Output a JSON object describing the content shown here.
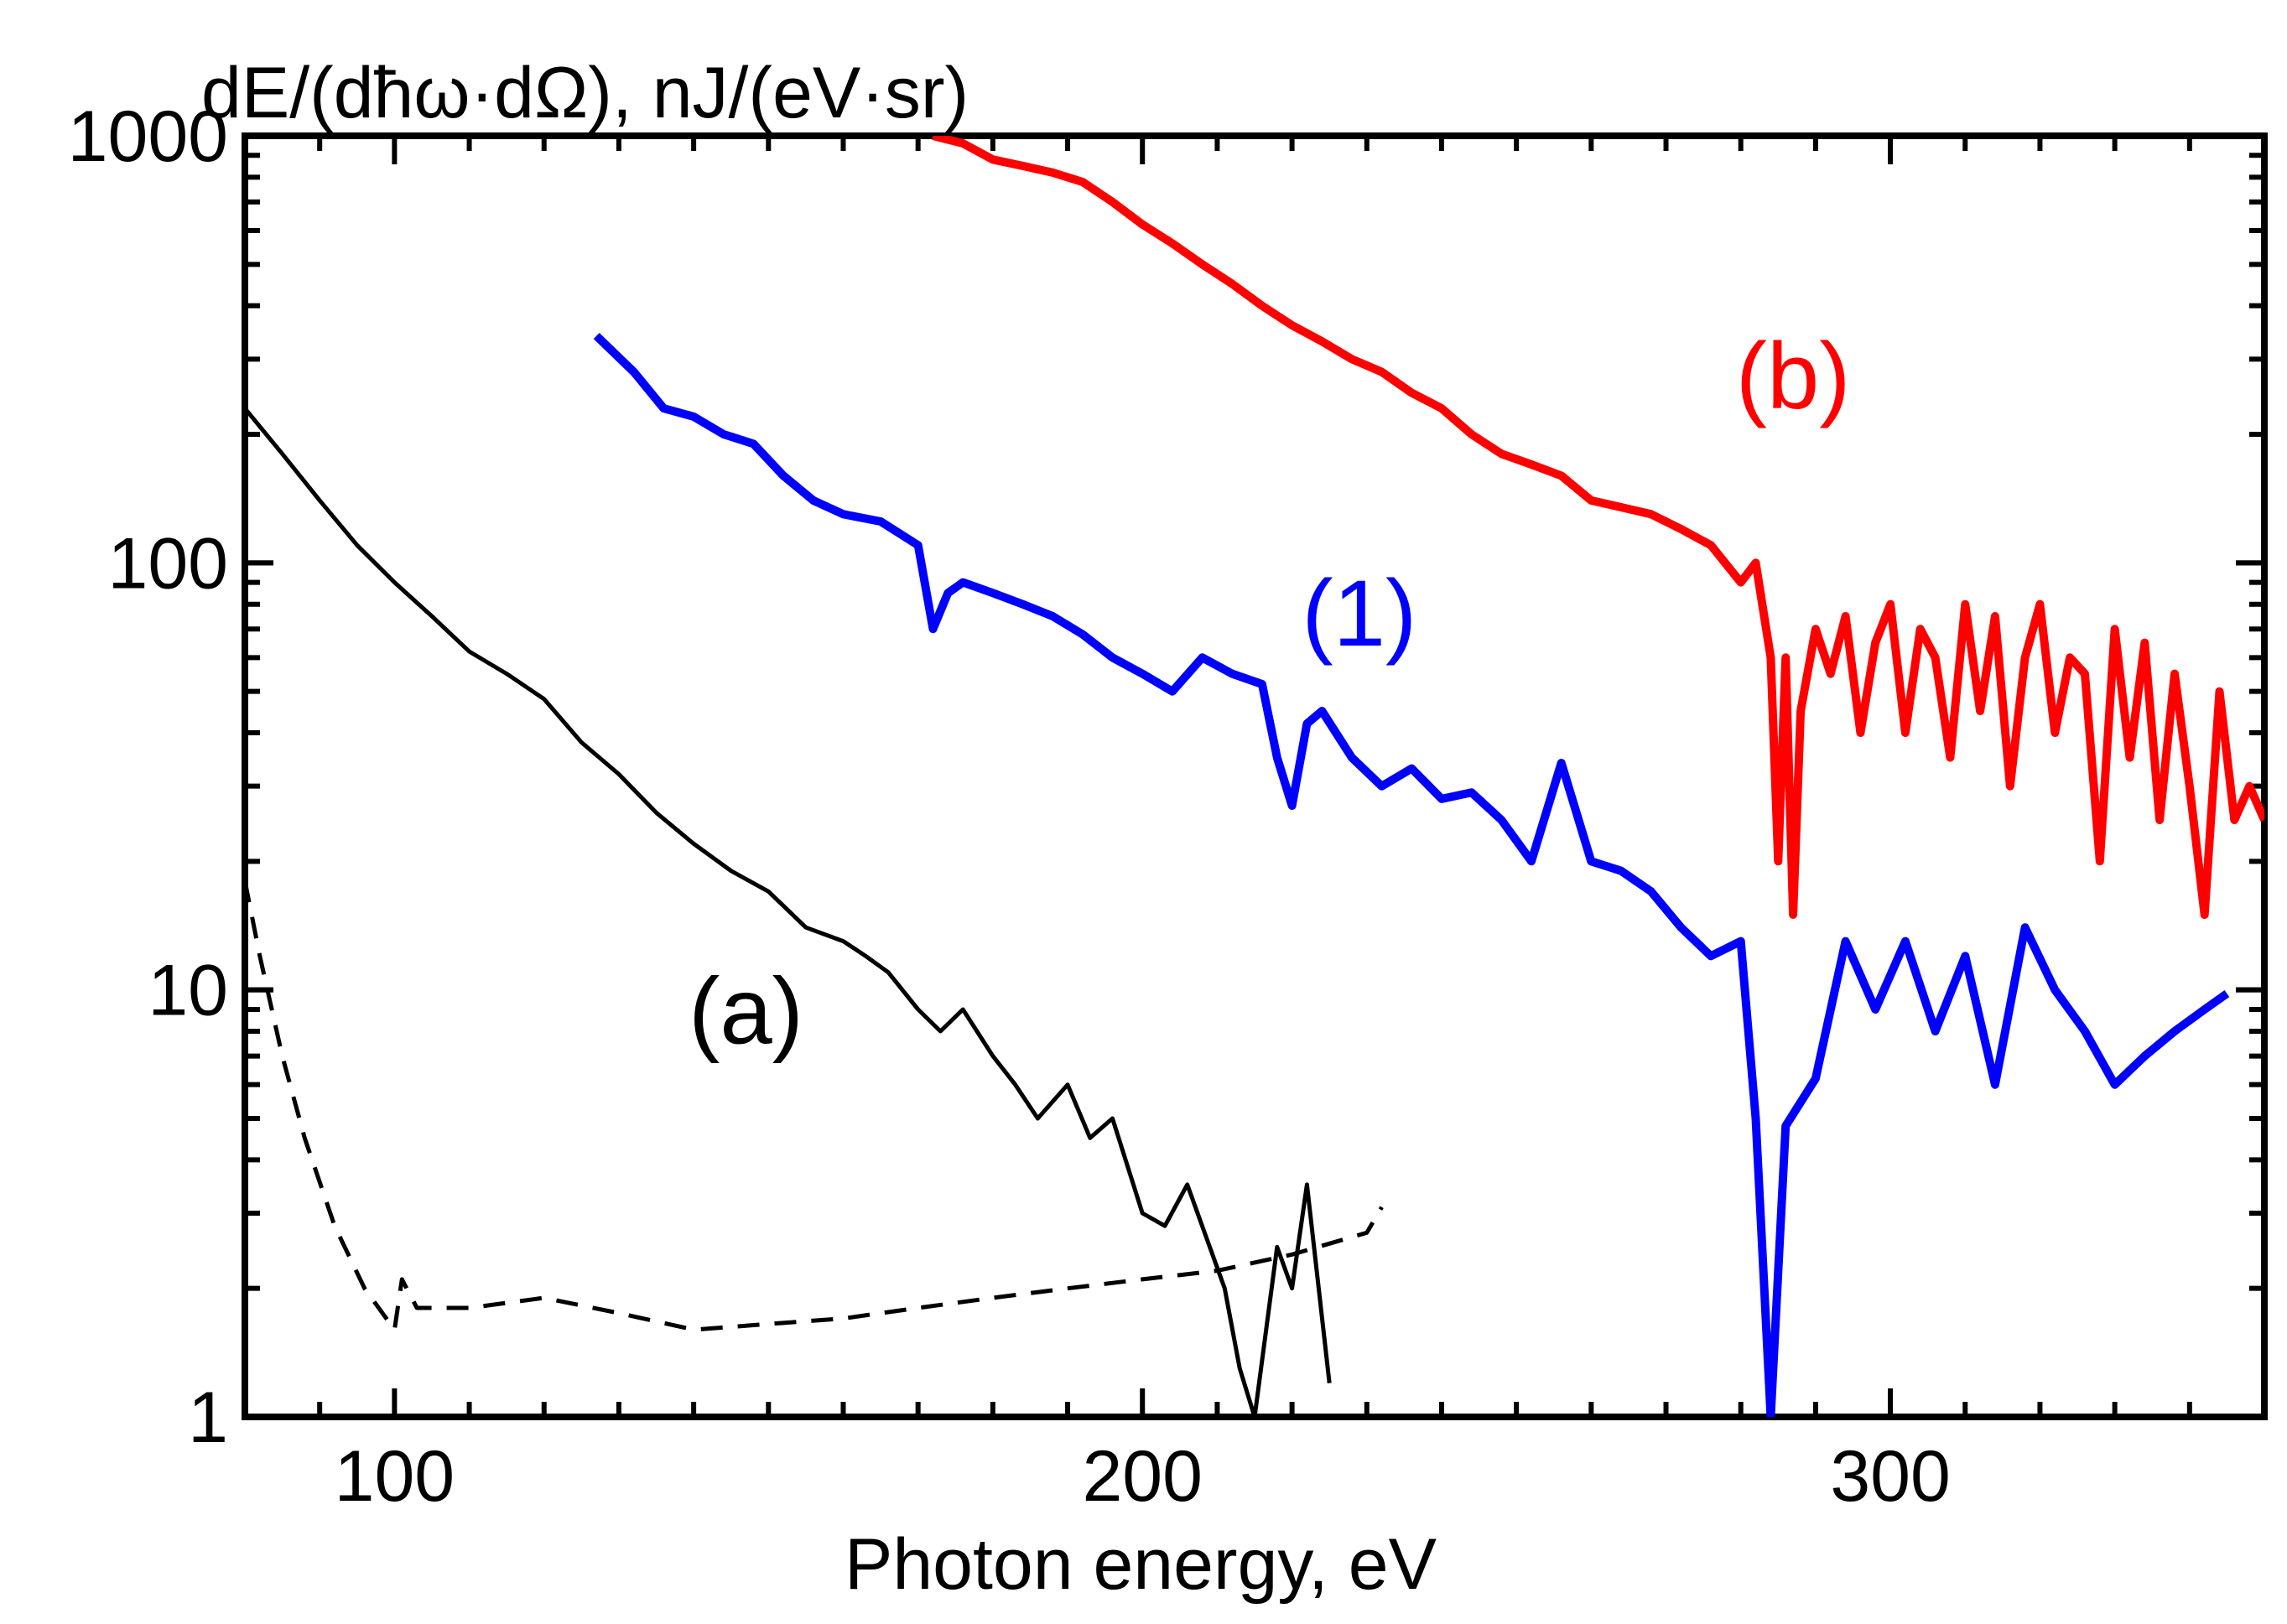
{
  "chart_data": {
    "type": "line",
    "xlabel": "Photon energy, eV",
    "ylabel": "dE/(dħω·dΩ), nJ/(eV·sr)",
    "xlim": [
      80,
      350
    ],
    "ylim": [
      1,
      1000
    ],
    "yscale": "log",
    "grid": false,
    "x_ticks": [
      100,
      200,
      300
    ],
    "x_tick_labels": [
      "100",
      "200",
      "300"
    ],
    "y_ticks": [
      1,
      10,
      100,
      1000
    ],
    "y_tick_labels": [
      "1",
      "10",
      "100",
      "1000"
    ],
    "series": [
      {
        "name": "(b)",
        "color": "#ff0000",
        "style": "solid",
        "x": [
          172,
          176,
          180,
          184,
          188,
          192,
          196,
          200,
          204,
          208,
          212,
          216,
          220,
          224,
          228,
          232,
          236,
          240,
          244,
          248,
          252,
          256,
          260,
          264,
          268,
          272,
          276,
          280,
          282,
          284,
          285,
          286,
          287,
          288,
          290,
          292,
          294,
          296,
          298,
          300,
          302,
          304,
          306,
          308,
          310,
          312,
          314,
          316,
          318,
          320,
          322,
          324,
          326,
          328,
          330,
          332,
          334,
          336,
          338,
          340,
          342,
          344,
          346,
          348,
          350
        ],
        "y": [
          1000,
          960,
          880,
          850,
          820,
          780,
          700,
          620,
          560,
          500,
          450,
          400,
          360,
          330,
          300,
          280,
          250,
          230,
          200,
          180,
          170,
          160,
          140,
          135,
          130,
          120,
          110,
          90,
          100,
          60,
          20,
          60,
          15,
          45,
          70,
          55,
          75,
          40,
          65,
          80,
          40,
          70,
          60,
          35,
          80,
          45,
          75,
          30,
          60,
          80,
          40,
          60,
          55,
          20,
          70,
          35,
          65,
          25,
          55,
          30,
          15,
          50,
          25,
          30,
          25
        ]
      },
      {
        "name": "(1)",
        "color": "#0000ff",
        "style": "solid",
        "x": [
          127,
          132,
          136,
          140,
          144,
          148,
          152,
          156,
          160,
          165,
          170,
          172,
          174,
          176,
          180,
          184,
          188,
          192,
          196,
          200,
          204,
          208,
          212,
          216,
          218,
          220,
          222,
          224,
          228,
          232,
          236,
          240,
          244,
          248,
          252,
          256,
          260,
          264,
          268,
          272,
          276,
          280,
          282,
          284,
          286,
          290,
          294,
          298,
          302,
          306,
          310,
          314,
          318,
          322,
          326,
          330,
          334,
          338,
          342,
          345
        ],
        "y": [
          340,
          280,
          230,
          220,
          200,
          190,
          160,
          140,
          130,
          125,
          110,
          70,
          85,
          90,
          85,
          80,
          75,
          68,
          60,
          55,
          50,
          60,
          55,
          52,
          35,
          27,
          42,
          45,
          35,
          30,
          33,
          28,
          29,
          25,
          20,
          34,
          20,
          19,
          17,
          14,
          12,
          13,
          5,
          1,
          4.8,
          6.2,
          13,
          9,
          13,
          8,
          12,
          6,
          14,
          10,
          8,
          6,
          7,
          8,
          9,
          9.8
        ]
      },
      {
        "name": "(a)",
        "color": "#000000",
        "style": "solid",
        "x": [
          80,
          85,
          90,
          95,
          100,
          105,
          110,
          115,
          120,
          125,
          130,
          135,
          140,
          145,
          150,
          155,
          160,
          163,
          166,
          170,
          173,
          176,
          180,
          183,
          186,
          190,
          193,
          196,
          200,
          203,
          206,
          209,
          211,
          213,
          215,
          218,
          220,
          222,
          225
        ],
        "y": [
          230,
          180,
          140,
          110,
          90,
          75,
          62,
          55,
          48,
          38,
          32,
          26,
          22,
          19,
          17,
          14,
          13,
          12,
          11,
          9,
          8,
          9,
          7,
          6,
          5,
          6,
          4.5,
          5,
          3,
          2.8,
          3.5,
          2.5,
          2,
          1.3,
          1,
          2.5,
          2,
          3.5,
          1.2
        ]
      },
      {
        "name": "",
        "color": "#000000",
        "style": "dashed",
        "x": [
          80,
          82,
          85,
          88,
          92,
          96,
          100,
          101,
          103,
          110,
          120,
          130,
          140,
          150,
          160,
          170,
          180,
          190,
          200,
          210,
          220,
          230,
          232
        ],
        "y": [
          18,
          12,
          7,
          4.5,
          2.8,
          2,
          1.6,
          2.1,
          1.8,
          1.8,
          1.9,
          1.75,
          1.6,
          1.65,
          1.7,
          1.8,
          1.9,
          2.0,
          2.1,
          2.2,
          2.4,
          2.7,
          3.1
        ]
      }
    ],
    "annotations": [
      {
        "text": "(a)",
        "x": 147,
        "y": 7.5,
        "color": "#000000"
      },
      {
        "text": "(1)",
        "x": 229,
        "y": 64,
        "color": "#0000ff"
      },
      {
        "text": "(b)",
        "x": 287,
        "y": 230,
        "color": "#ff0000"
      }
    ]
  }
}
